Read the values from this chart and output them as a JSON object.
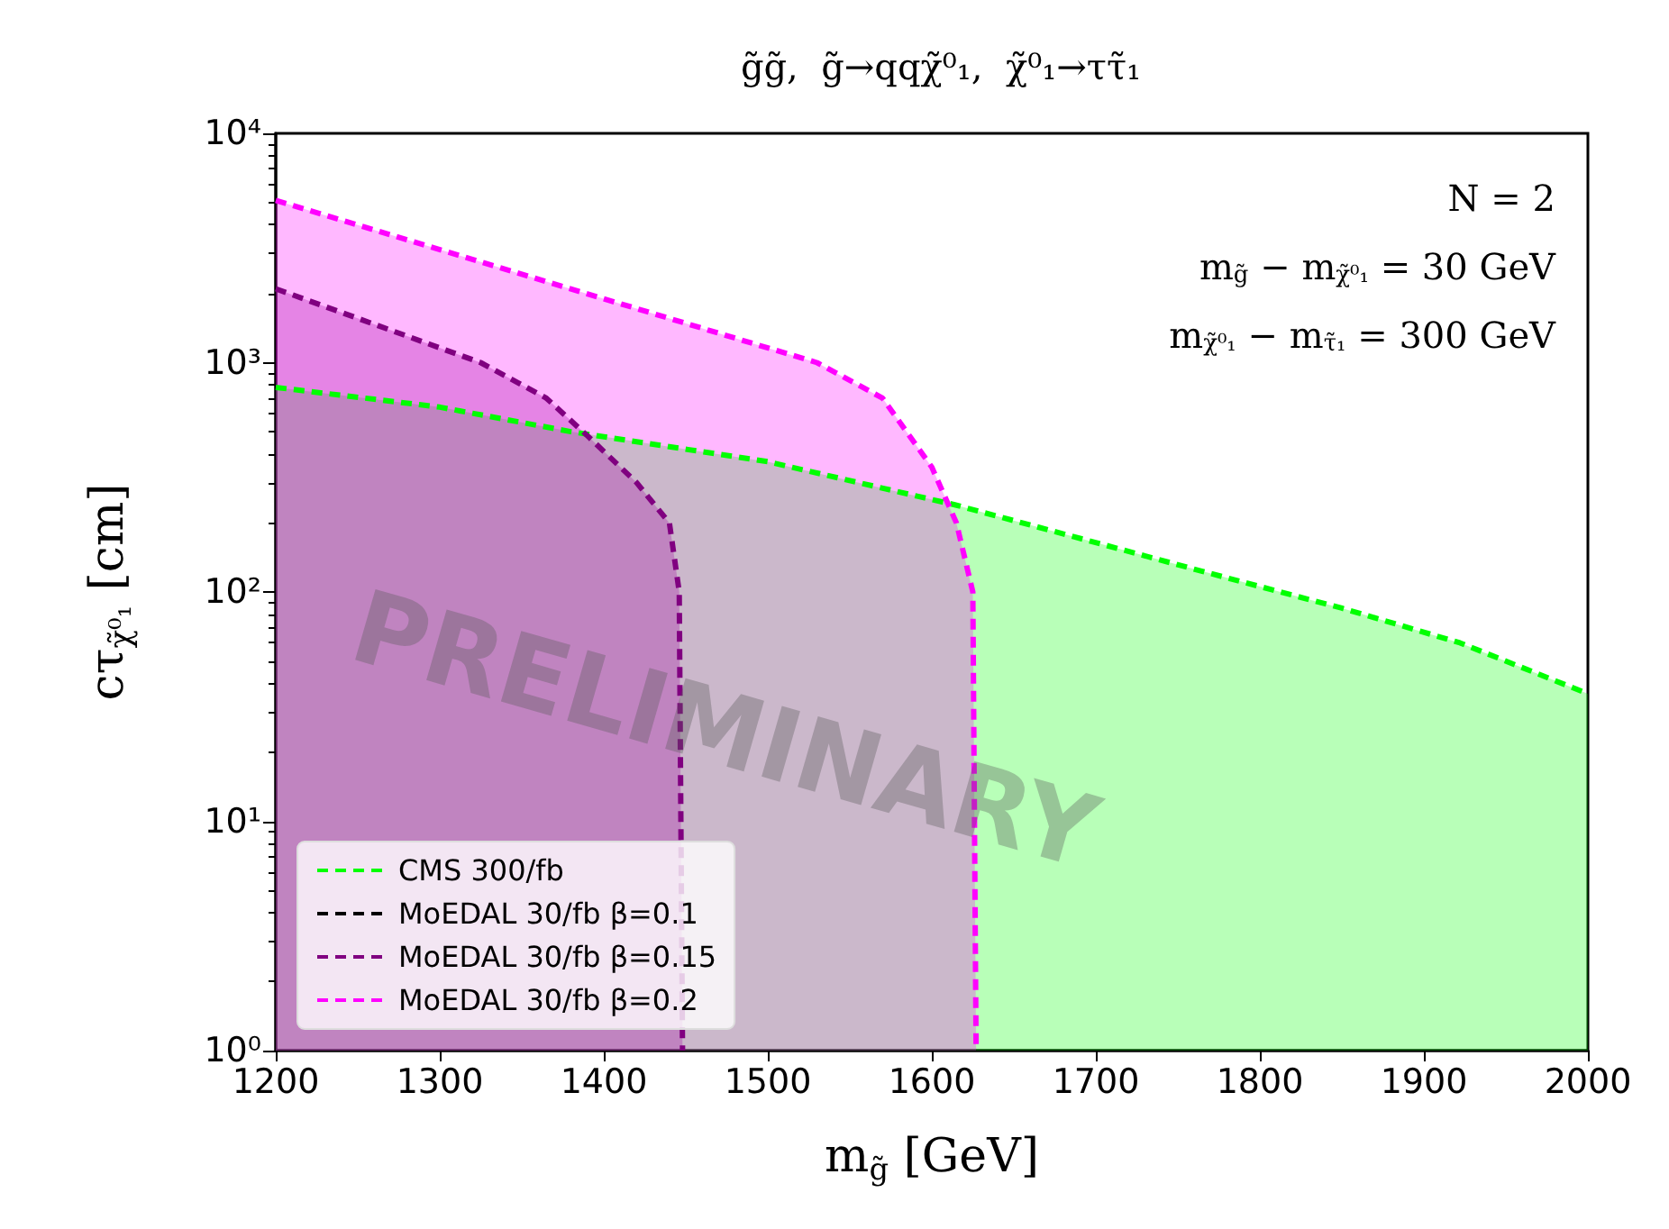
{
  "chart_data": {
    "type": "area",
    "title": "g̃g̃,  g̃→qqχ̃⁰₁,  χ̃⁰₁→ττ̃₁",
    "xlabel": "m$_{g̃}$ [GeV]",
    "ylabel": "cτ$_{χ̃⁰₁}$ [cm]",
    "log": "y",
    "xlim": [
      1200,
      2000
    ],
    "xticks": [
      1200,
      1300,
      1400,
      1500,
      1600,
      1700,
      1800,
      1900,
      2000
    ],
    "ylim": [
      1,
      10000
    ],
    "yticks": [
      {
        "value": 1,
        "label": "10⁰"
      },
      {
        "value": 10,
        "label": "10¹"
      },
      {
        "value": 100,
        "label": "10²"
      },
      {
        "value": 1000,
        "label": "10³"
      },
      {
        "value": 10000,
        "label": "10⁴"
      }
    ],
    "grid": false,
    "legend": "bottom left",
    "line_style": "dashed",
    "marker": "none",
    "series": [
      {
        "name": "CMS 300/fb",
        "color": "#00ff00",
        "x": [
          1200,
          1300,
          1380,
          1500,
          1614,
          1713,
          1765,
          1850,
          1922,
          2000
        ],
        "values": [
          780,
          640,
          500,
          370,
          240,
          155,
          123,
          85,
          60,
          36
        ]
      },
      {
        "name": "MoEDAL 30/fb β=0.1",
        "color": "#000000"
      },
      {
        "name": "MoEDAL 30/fb β=0.15",
        "color": "#800080",
        "x": [
          1200,
          1325,
          1365,
          1390,
          1420,
          1440,
          1446,
          1448
        ],
        "values": [
          2100,
          1000,
          700,
          480,
          300,
          200,
          100,
          1
        ]
      },
      {
        "name": "MoEDAL 30/fb β=0.2",
        "color": "#ff00ff",
        "x": [
          1200,
          1530,
          1570,
          1600,
          1615,
          1625,
          1627
        ],
        "values": [
          5100,
          1000,
          700,
          350,
          200,
          100,
          1
        ]
      }
    ],
    "annotations": [
      "N = 2",
      "m$_{g̃}$ − m$_{χ̃⁰₁}$ = 30 GeV",
      "m$_{χ̃⁰₁}$ − m$_{τ̃₁}$ = 300 GeV",
      "PRELIMINARY"
    ]
  }
}
